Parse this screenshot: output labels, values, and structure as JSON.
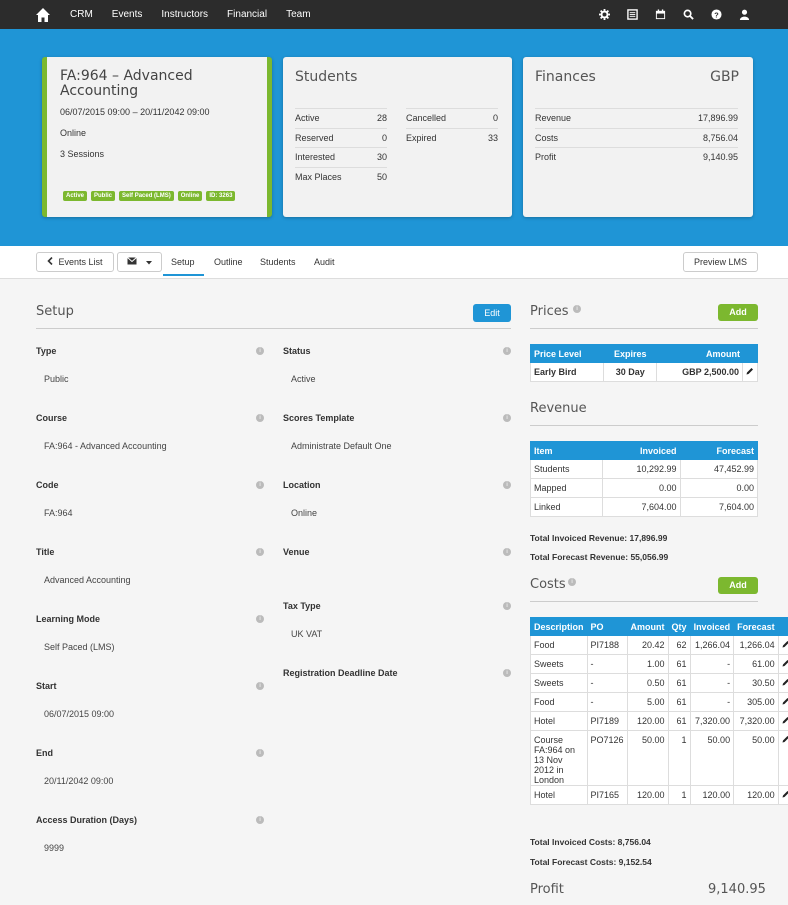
{
  "nav": {
    "items": [
      "CRM",
      "Events",
      "Instructors",
      "Financial",
      "Team"
    ]
  },
  "event": {
    "title": "FA:964 – Advanced Accounting",
    "dates": "06/07/2015 09:00 – 20/11/2042 09:00",
    "mode": "Online",
    "sessions": "3 Sessions",
    "badges": [
      "Active",
      "Public",
      "Self Paced (LMS)",
      "Online",
      "ID: 3263"
    ]
  },
  "students": {
    "title": "Students",
    "left": [
      [
        "Active",
        "28"
      ],
      [
        "Reserved",
        "0"
      ],
      [
        "Interested",
        "30"
      ],
      [
        "Max Places",
        "50"
      ]
    ],
    "right": [
      [
        "Cancelled",
        "0"
      ],
      [
        "Expired",
        "33"
      ]
    ]
  },
  "finances": {
    "title": "Finances",
    "currency": "GBP",
    "rows": [
      [
        "Revenue",
        "17,896.99"
      ],
      [
        "Costs",
        "8,756.04"
      ],
      [
        "Profit",
        "9,140.95"
      ]
    ]
  },
  "tabs": {
    "events_list": "Events List",
    "items": [
      "Setup",
      "Outline",
      "Students",
      "Audit"
    ],
    "preview": "Preview LMS"
  },
  "setup": {
    "title": "Setup",
    "edit": "Edit",
    "left": [
      {
        "label": "Type",
        "value": "Public"
      },
      {
        "label": "Course",
        "value": "FA:964 - Advanced Accounting"
      },
      {
        "label": "Code",
        "value": "FA:964"
      },
      {
        "label": "Title",
        "value": "Advanced Accounting"
      },
      {
        "label": "Learning Mode",
        "value": "Self Paced (LMS)"
      },
      {
        "label": "Start",
        "value": "06/07/2015 09:00"
      },
      {
        "label": "End",
        "value": "20/11/2042 09:00"
      },
      {
        "label": "Access Duration (Days)",
        "value": "9999"
      }
    ],
    "right": [
      {
        "label": "Status",
        "value": "Active"
      },
      {
        "label": "Scores Template",
        "value": "Administrate Default One"
      },
      {
        "label": "Location",
        "value": "Online"
      },
      {
        "label": "Venue",
        "value": ""
      },
      {
        "label": "Tax Type",
        "value": "UK VAT"
      },
      {
        "label": "Registration Deadline Date",
        "value": ""
      }
    ]
  },
  "prices": {
    "title": "Prices",
    "add": "Add",
    "headers": [
      "Price Level",
      "Expires",
      "Amount"
    ],
    "rows": [
      [
        "Early Bird",
        "30 Day",
        "GBP 2,500.00"
      ]
    ]
  },
  "revenue": {
    "title": "Revenue",
    "headers": [
      "Item",
      "Invoiced",
      "Forecast"
    ],
    "rows": [
      [
        "Students",
        "10,292.99",
        "47,452.99"
      ],
      [
        "Mapped",
        "0.00",
        "0.00"
      ],
      [
        "Linked",
        "7,604.00",
        "7,604.00"
      ]
    ],
    "total_invoiced": "Total Invoiced Revenue: 17,896.99",
    "total_forecast": "Total Forecast Revenue: 55,056.99"
  },
  "costs": {
    "title": "Costs",
    "add": "Add",
    "headers": [
      "Description",
      "PO",
      "Amount",
      "Qty",
      "Invoiced",
      "Forecast"
    ],
    "rows": [
      [
        "Food",
        "PI7188",
        "20.42",
        "62",
        "1,266.04",
        "1,266.04"
      ],
      [
        "Sweets",
        "-",
        "1.00",
        "61",
        "-",
        "61.00"
      ],
      [
        "Sweets",
        "-",
        "0.50",
        "61",
        "-",
        "30.50"
      ],
      [
        "Food",
        "-",
        "5.00",
        "61",
        "-",
        "305.00"
      ],
      [
        "Hotel",
        "PI7189",
        "120.00",
        "61",
        "7,320.00",
        "7,320.00"
      ],
      [
        "Course FA:964 on 13 Nov 2012 in London",
        "PO7126",
        "50.00",
        "1",
        "50.00",
        "50.00"
      ],
      [
        "Hotel",
        "PI7165",
        "120.00",
        "1",
        "120.00",
        "120.00"
      ]
    ],
    "total_invoiced": "Total Invoiced Costs: 8,756.04",
    "total_forecast": "Total Forecast Costs: 9,152.54"
  },
  "profit": {
    "label": "Profit",
    "value": "9,140.95"
  }
}
